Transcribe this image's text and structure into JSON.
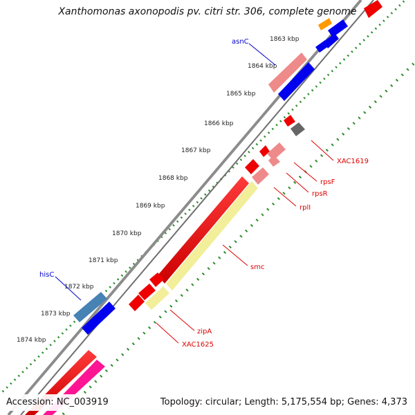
{
  "title": "Xanthomonas axonopodis pv. citri str. 306, complete genome",
  "footer": {
    "accession": "Accession: NC_003919",
    "summary": "Topology: circular; Length: 5,175,554 bp; Genes: 4,373"
  },
  "kbp_labels": [
    "1863 kbp",
    "1864 kbp",
    "1865 kbp",
    "1866 kbp",
    "1867 kbp",
    "1868 kbp",
    "1869 kbp",
    "1870 kbp",
    "1871 kbp",
    "1872 kbp",
    "1873 kbp",
    "1874 kbp"
  ],
  "gene_labels": [
    {
      "name": "asnC",
      "color": "#0000cc"
    },
    {
      "name": "hisC",
      "color": "#0000cc"
    },
    {
      "name": "XAC1619",
      "color": "#dd0000"
    },
    {
      "name": "rpsF",
      "color": "#dd0000"
    },
    {
      "name": "rpsR",
      "color": "#dd0000"
    },
    {
      "name": "rplI",
      "color": "#dd0000"
    },
    {
      "name": "smc",
      "color": "#dd0000"
    },
    {
      "name": "zipA",
      "color": "#dd0000"
    },
    {
      "name": "XAC1625",
      "color": "#dd0000"
    }
  ],
  "colors": {
    "backbone": "#8c8c8c",
    "ticks": "#2e8b2e",
    "cds_red": "#ee0000",
    "cds_blue": "#0000ee",
    "rrna_yellow": "#f2ee9a",
    "pink": "#ef8a8a",
    "magenta": "#ff1493",
    "steel": "#4682b4",
    "gray": "#666666",
    "orange": "#ff9900"
  }
}
